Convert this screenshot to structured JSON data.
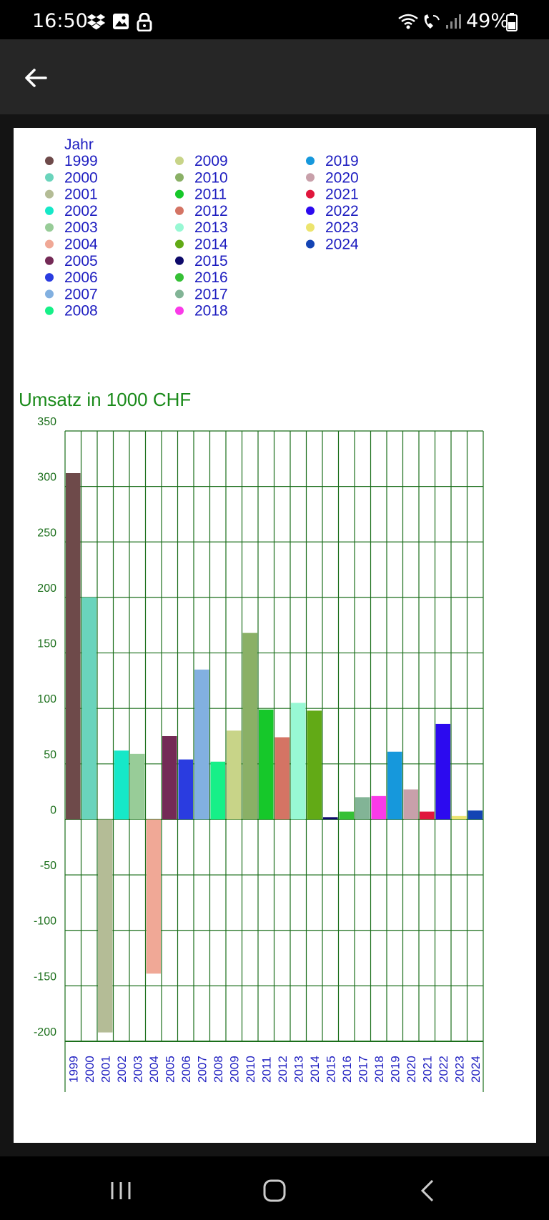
{
  "status_bar": {
    "time": "16:50",
    "battery": "49%"
  },
  "colors": {
    "axis": "#1a6e1a",
    "title": "#1a8a1a",
    "legend_text": "#1c1cc0",
    "label_text": "#1c1cc0"
  },
  "chart_data": {
    "type": "bar",
    "title": "Umsatz in 1000 CHF",
    "legend_title": "Jahr",
    "xlabel": "",
    "ylabel": "",
    "ylim": [
      -200,
      350
    ],
    "yticks": [
      350,
      300,
      250,
      200,
      150,
      100,
      50,
      0,
      -50,
      -100,
      -150,
      -200
    ],
    "grid": true,
    "legend_position": "top-left",
    "categories": [
      "1999",
      "2000",
      "2001",
      "2002",
      "2003",
      "2004",
      "2005",
      "2006",
      "2007",
      "2008",
      "2009",
      "2010",
      "2011",
      "2012",
      "2013",
      "2014",
      "2015",
      "2016",
      "2017",
      "2018",
      "2019",
      "2020",
      "2021",
      "2022",
      "2023",
      "2024"
    ],
    "values": [
      312,
      200,
      -192,
      62,
      59,
      -139,
      75,
      54,
      135,
      52,
      80,
      168,
      99,
      74,
      105,
      98,
      2,
      7,
      20,
      21,
      61,
      27,
      7,
      86,
      3,
      8
    ],
    "colors": [
      "#6e4a4a",
      "#6ad4bc",
      "#b4bc96",
      "#16e8c8",
      "#98cc98",
      "#f0a896",
      "#742a56",
      "#2a3ce0",
      "#82b0e0",
      "#16f088",
      "#c8d488",
      "#8ab066",
      "#16c82a",
      "#d47464",
      "#98f8d4",
      "#62aa16",
      "#0e0a6a",
      "#36c036",
      "#82b496",
      "#fa3ae8",
      "#1698dc",
      "#c8a0aa",
      "#e0163c",
      "#2c0aef",
      "#ece46e",
      "#1444b4"
    ]
  }
}
